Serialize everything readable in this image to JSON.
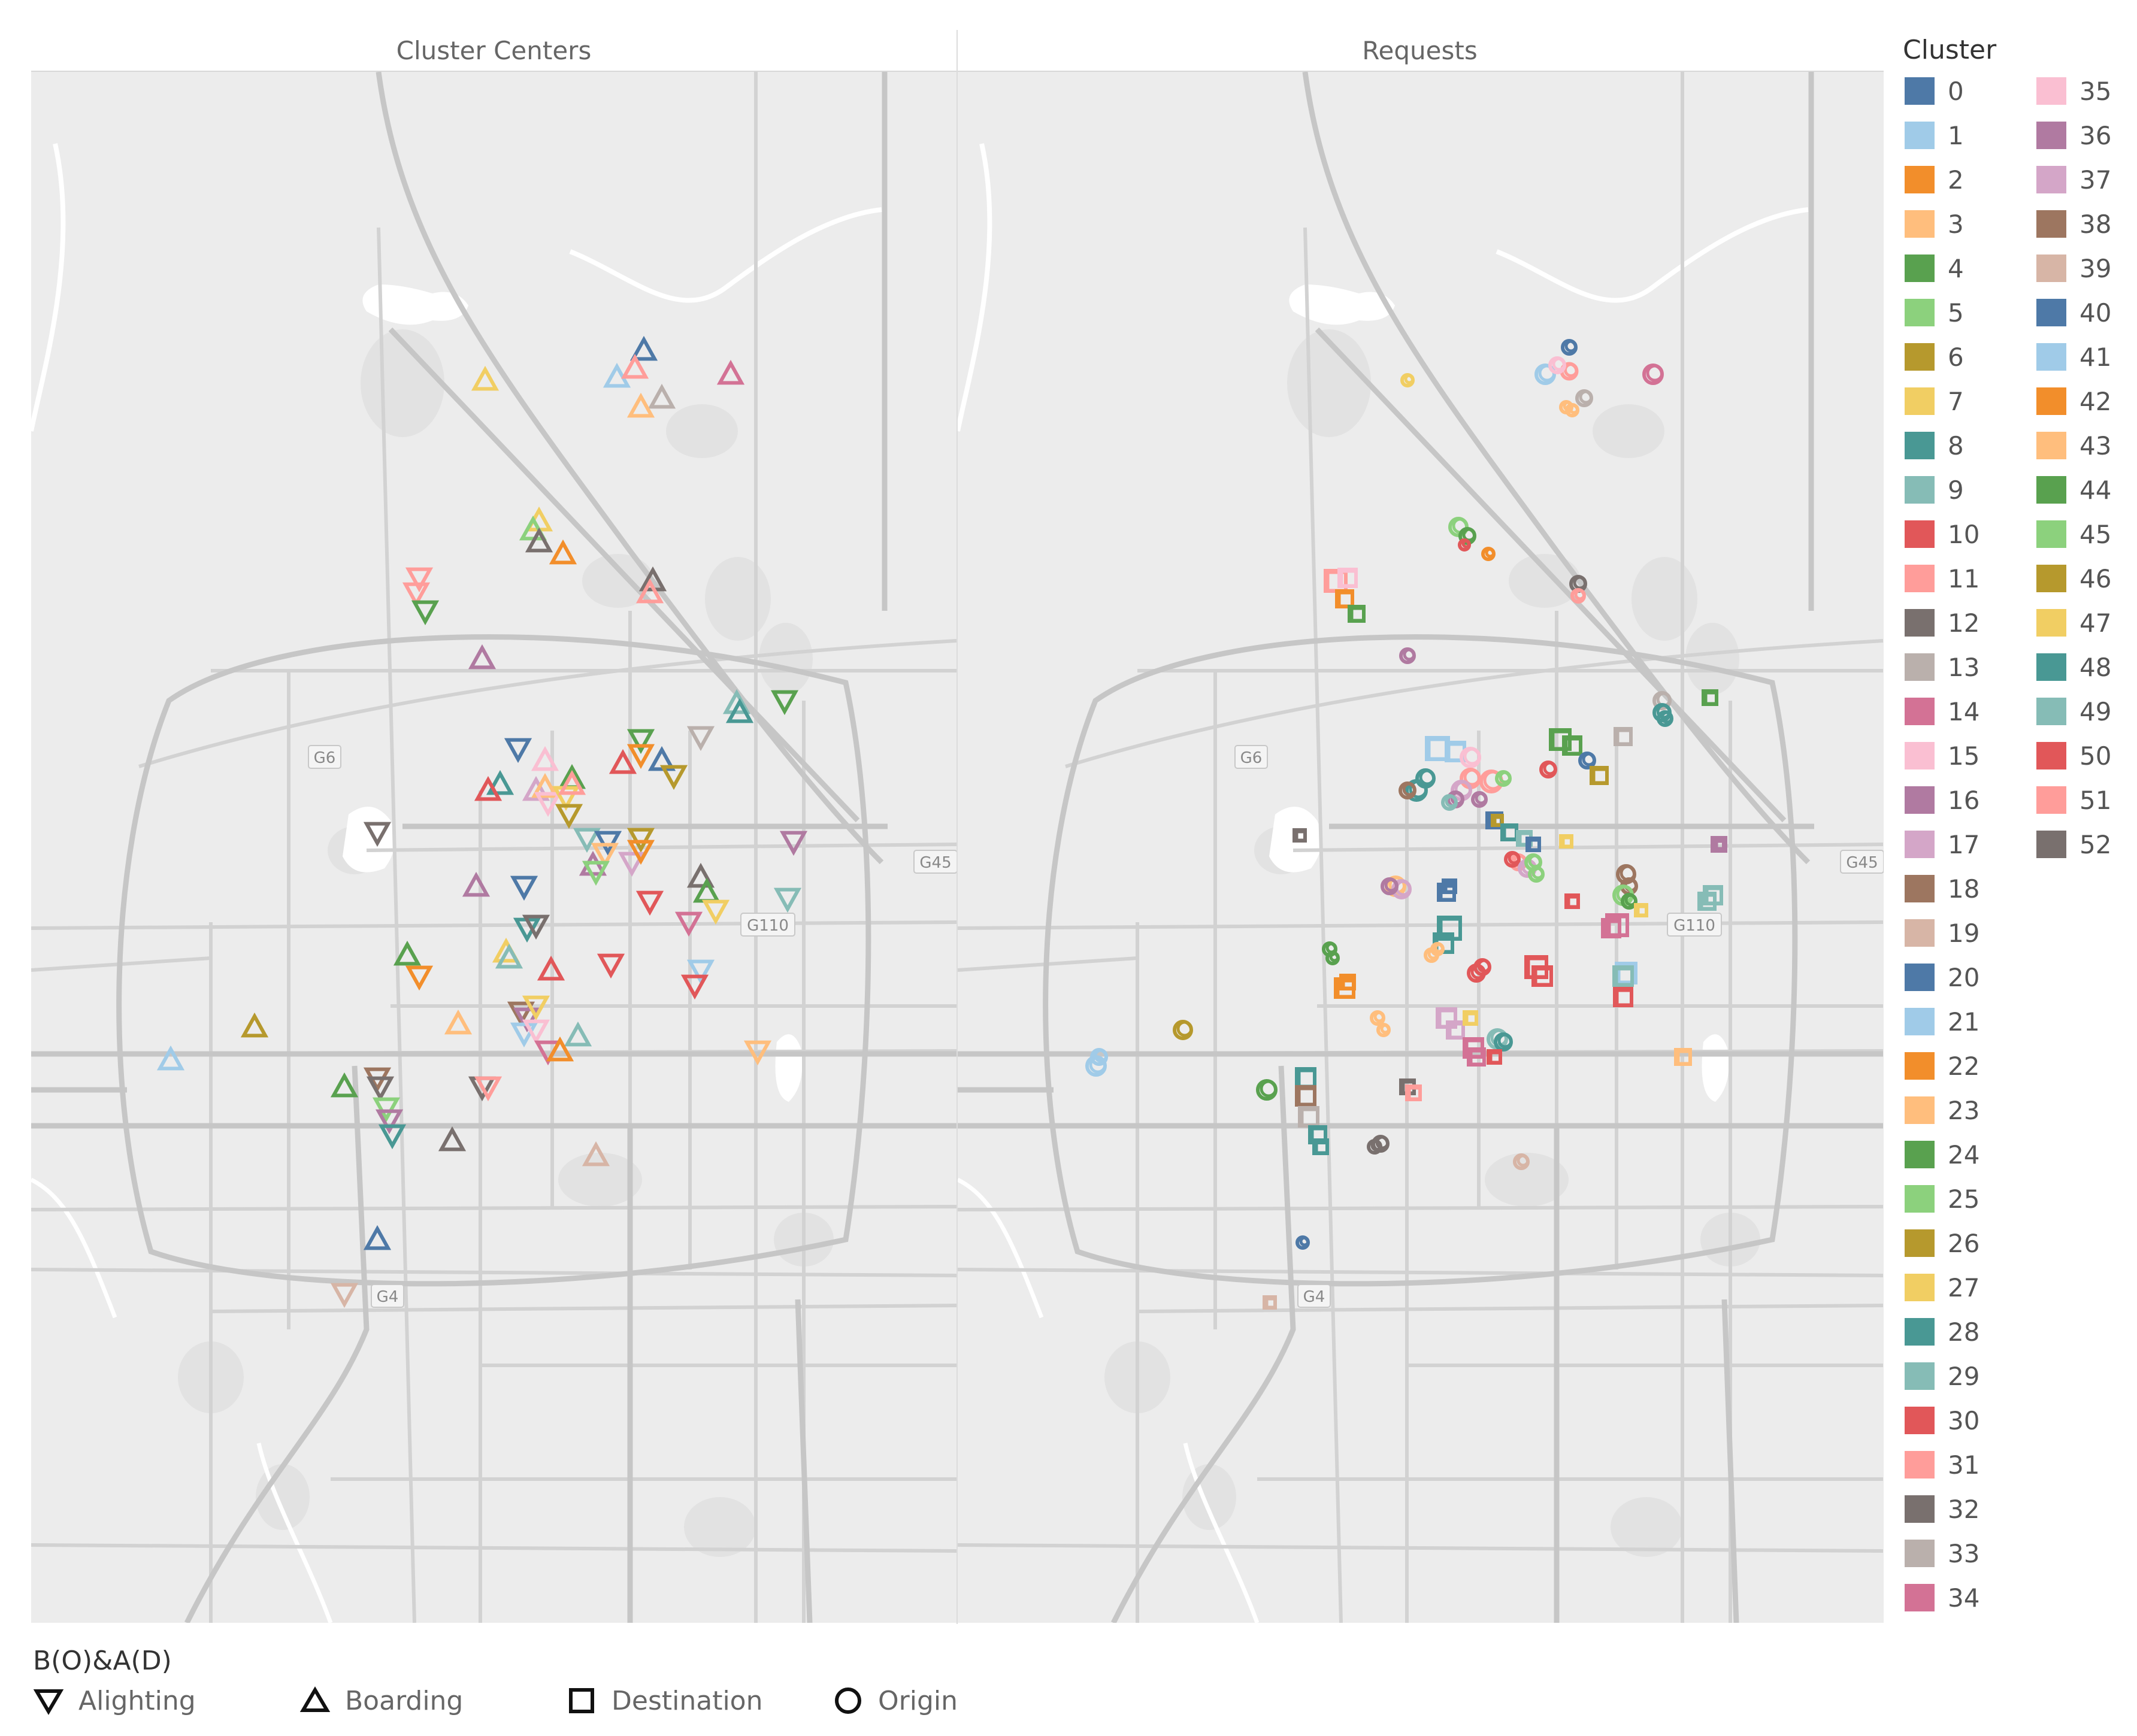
{
  "panels": {
    "left_title": "Cluster Centers",
    "right_title": "Requests"
  },
  "map": {
    "labels": [
      "G6",
      "G45",
      "G110",
      "G4"
    ]
  },
  "cluster_legend": {
    "title": "Cluster",
    "items": [
      {
        "label": "0",
        "color": "#4e79a7"
      },
      {
        "label": "1",
        "color": "#a0cbe8"
      },
      {
        "label": "2",
        "color": "#f28e2b"
      },
      {
        "label": "3",
        "color": "#ffbe7d"
      },
      {
        "label": "4",
        "color": "#59a14f"
      },
      {
        "label": "5",
        "color": "#8cd17d"
      },
      {
        "label": "6",
        "color": "#b6992d"
      },
      {
        "label": "7",
        "color": "#f1ce63"
      },
      {
        "label": "8",
        "color": "#499894"
      },
      {
        "label": "9",
        "color": "#86bcb6"
      },
      {
        "label": "10",
        "color": "#e15759"
      },
      {
        "label": "11",
        "color": "#ff9d9a"
      },
      {
        "label": "12",
        "color": "#79706e"
      },
      {
        "label": "13",
        "color": "#bab0ac"
      },
      {
        "label": "14",
        "color": "#d37295"
      },
      {
        "label": "15",
        "color": "#fabfd2"
      },
      {
        "label": "16",
        "color": "#b07aa1"
      },
      {
        "label": "17",
        "color": "#d4a6c8"
      },
      {
        "label": "18",
        "color": "#9d7660"
      },
      {
        "label": "19",
        "color": "#d7b5a6"
      },
      {
        "label": "20",
        "color": "#4e79a7"
      },
      {
        "label": "21",
        "color": "#a0cbe8"
      },
      {
        "label": "22",
        "color": "#f28e2b"
      },
      {
        "label": "23",
        "color": "#ffbe7d"
      },
      {
        "label": "24",
        "color": "#59a14f"
      },
      {
        "label": "25",
        "color": "#8cd17d"
      },
      {
        "label": "26",
        "color": "#b6992d"
      },
      {
        "label": "27",
        "color": "#f1ce63"
      },
      {
        "label": "28",
        "color": "#499894"
      },
      {
        "label": "29",
        "color": "#86bcb6"
      },
      {
        "label": "30",
        "color": "#e15759"
      },
      {
        "label": "31",
        "color": "#ff9d9a"
      },
      {
        "label": "32",
        "color": "#79706e"
      },
      {
        "label": "33",
        "color": "#bab0ac"
      },
      {
        "label": "34",
        "color": "#d37295"
      },
      {
        "label": "35",
        "color": "#fabfd2"
      },
      {
        "label": "36",
        "color": "#b07aa1"
      },
      {
        "label": "37",
        "color": "#d4a6c8"
      },
      {
        "label": "38",
        "color": "#9d7660"
      },
      {
        "label": "39",
        "color": "#d7b5a6"
      },
      {
        "label": "40",
        "color": "#4e79a7"
      },
      {
        "label": "41",
        "color": "#a0cbe8"
      },
      {
        "label": "42",
        "color": "#f28e2b"
      },
      {
        "label": "43",
        "color": "#ffbe7d"
      },
      {
        "label": "44",
        "color": "#59a14f"
      },
      {
        "label": "45",
        "color": "#8cd17d"
      },
      {
        "label": "46",
        "color": "#b6992d"
      },
      {
        "label": "47",
        "color": "#f1ce63"
      },
      {
        "label": "48",
        "color": "#499894"
      },
      {
        "label": "49",
        "color": "#86bcb6"
      },
      {
        "label": "50",
        "color": "#e15759"
      },
      {
        "label": "51",
        "color": "#ff9d9a"
      },
      {
        "label": "52",
        "color": "#79706e"
      }
    ]
  },
  "shape_legend": {
    "title": "B(O)&A(D)",
    "items": [
      {
        "label": "Alighting",
        "shape": "triangle-down"
      },
      {
        "label": "Boarding",
        "shape": "triangle-up"
      },
      {
        "label": "Destination",
        "shape": "square"
      },
      {
        "label": "Origin",
        "shape": "circle"
      }
    ]
  },
  "center_marks": [
    [
      0,
      "up",
      1075,
      585
    ],
    [
      1,
      "up",
      1030,
      630
    ],
    [
      11,
      "up",
      1060,
      615
    ],
    [
      13,
      "up",
      1105,
      665
    ],
    [
      3,
      "up",
      1070,
      680
    ],
    [
      14,
      "up",
      1220,
      625
    ],
    [
      7,
      "up",
      810,
      635
    ],
    [
      7,
      "up",
      900,
      870
    ],
    [
      5,
      "up",
      890,
      885
    ],
    [
      12,
      "up",
      900,
      905
    ],
    [
      2,
      "up",
      940,
      925
    ],
    [
      11,
      "down",
      700,
      965
    ],
    [
      31,
      "down",
      695,
      990
    ],
    [
      4,
      "down",
      710,
      1020
    ],
    [
      12,
      "up",
      1090,
      970
    ],
    [
      31,
      "up",
      1085,
      990
    ],
    [
      16,
      "up",
      805,
      1100
    ],
    [
      9,
      "up",
      1230,
      1175
    ],
    [
      8,
      "up",
      1235,
      1190
    ],
    [
      4,
      "down",
      1310,
      1170
    ],
    [
      0,
      "down",
      865,
      1250
    ],
    [
      15,
      "up",
      910,
      1270
    ],
    [
      4,
      "down",
      1070,
      1235
    ],
    [
      2,
      "down",
      1070,
      1260
    ],
    [
      0,
      "up",
      1105,
      1270
    ],
    [
      10,
      "up",
      1040,
      1275
    ],
    [
      6,
      "down",
      1125,
      1295
    ],
    [
      13,
      "down",
      1170,
      1230
    ],
    [
      8,
      "up",
      835,
      1310
    ],
    [
      10,
      "up",
      815,
      1320
    ],
    [
      37,
      "up",
      895,
      1320
    ],
    [
      3,
      "up",
      910,
      1315
    ],
    [
      15,
      "down",
      915,
      1340
    ],
    [
      4,
      "up",
      955,
      1300
    ],
    [
      7,
      "down",
      945,
      1330
    ],
    [
      11,
      "up",
      955,
      1310
    ],
    [
      6,
      "down",
      950,
      1360
    ],
    [
      12,
      "down",
      630,
      1390
    ],
    [
      9,
      "down",
      980,
      1400
    ],
    [
      0,
      "down",
      1015,
      1405
    ],
    [
      6,
      "down",
      1070,
      1400
    ],
    [
      3,
      "down",
      1010,
      1425
    ],
    [
      36,
      "up",
      990,
      1445
    ],
    [
      17,
      "down",
      1055,
      1440
    ],
    [
      5,
      "down",
      995,
      1455
    ],
    [
      22,
      "down",
      1070,
      1420
    ],
    [
      36,
      "down",
      1325,
      1405
    ],
    [
      16,
      "up",
      795,
      1480
    ],
    [
      0,
      "down",
      875,
      1480
    ],
    [
      12,
      "up",
      1170,
      1465
    ],
    [
      4,
      "up",
      1180,
      1490
    ],
    [
      7,
      "down",
      1195,
      1520
    ],
    [
      10,
      "down",
      1085,
      1505
    ],
    [
      14,
      "down",
      1150,
      1540
    ],
    [
      8,
      "down",
      880,
      1550
    ],
    [
      12,
      "down",
      895,
      1545
    ],
    [
      9,
      "down",
      1315,
      1500
    ],
    [
      4,
      "up",
      680,
      1595
    ],
    [
      22,
      "down",
      700,
      1630
    ],
    [
      7,
      "up",
      845,
      1590
    ],
    [
      9,
      "up",
      850,
      1600
    ],
    [
      10,
      "up",
      920,
      1620
    ],
    [
      10,
      "down",
      1020,
      1610
    ],
    [
      21,
      "down",
      1170,
      1620
    ],
    [
      10,
      "down",
      1160,
      1645
    ],
    [
      3,
      "up",
      765,
      1710
    ],
    [
      38,
      "down",
      870,
      1690
    ],
    [
      16,
      "down",
      880,
      1700
    ],
    [
      7,
      "down",
      895,
      1680
    ],
    [
      21,
      "down",
      875,
      1725
    ],
    [
      15,
      "down",
      895,
      1720
    ],
    [
      29,
      "up",
      965,
      1730
    ],
    [
      14,
      "down",
      915,
      1755
    ],
    [
      2,
      "up",
      935,
      1755
    ],
    [
      6,
      "up",
      425,
      1715
    ],
    [
      41,
      "up",
      285,
      1770
    ],
    [
      3,
      "down",
      1265,
      1755
    ],
    [
      4,
      "up",
      575,
      1815
    ],
    [
      38,
      "down",
      630,
      1800
    ],
    [
      12,
      "down",
      635,
      1815
    ],
    [
      5,
      "down",
      645,
      1850
    ],
    [
      16,
      "down",
      650,
      1870
    ],
    [
      8,
      "down",
      655,
      1895
    ],
    [
      12,
      "down",
      805,
      1815
    ],
    [
      11,
      "down",
      815,
      1815
    ],
    [
      12,
      "up",
      755,
      1905
    ],
    [
      19,
      "up",
      995,
      1930
    ],
    [
      0,
      "up",
      630,
      2070
    ],
    [
      19,
      "down",
      575,
      2160
    ]
  ],
  "request_marks": [
    [
      0,
      "circle",
      2620,
      580,
      22
    ],
    [
      21,
      "circle",
      2580,
      625,
      30
    ],
    [
      11,
      "circle",
      2620,
      620,
      25
    ],
    [
      35,
      "circle",
      2600,
      610,
      24
    ],
    [
      23,
      "circle",
      2615,
      680,
      18
    ],
    [
      3,
      "circle",
      2625,
      685,
      18
    ],
    [
      13,
      "circle",
      2645,
      665,
      24
    ],
    [
      14,
      "circle",
      2760,
      625,
      30
    ],
    [
      7,
      "circle",
      2350,
      635,
      18
    ],
    [
      5,
      "circle",
      2435,
      880,
      28
    ],
    [
      4,
      "circle",
      2450,
      895,
      24
    ],
    [
      22,
      "circle",
      2485,
      925,
      18
    ],
    [
      10,
      "circle",
      2445,
      910,
      16
    ],
    [
      11,
      "square",
      2230,
      970,
      34
    ],
    [
      35,
      "square",
      2250,
      965,
      28
    ],
    [
      22,
      "square",
      2245,
      1000,
      26
    ],
    [
      4,
      "square",
      2265,
      1025,
      24
    ],
    [
      12,
      "circle",
      2635,
      975,
      24
    ],
    [
      11,
      "circle",
      2635,
      995,
      20
    ],
    [
      16,
      "circle",
      2350,
      1095,
      22
    ],
    [
      13,
      "circle",
      2775,
      1170,
      26
    ],
    [
      28,
      "circle",
      2775,
      1190,
      26
    ],
    [
      8,
      "circle",
      2780,
      1200,
      22
    ],
    [
      44,
      "square",
      2855,
      1165,
      22
    ],
    [
      24,
      "square",
      2605,
      1235,
      32
    ],
    [
      24,
      "square",
      2625,
      1245,
      28
    ],
    [
      13,
      "square",
      2710,
      1230,
      26
    ],
    [
      0,
      "circle",
      2650,
      1270,
      24
    ],
    [
      30,
      "circle",
      2585,
      1285,
      24
    ],
    [
      6,
      "square",
      2670,
      1295,
      26
    ],
    [
      41,
      "square",
      2400,
      1250,
      36
    ],
    [
      21,
      "square",
      2430,
      1255,
      30
    ],
    [
      15,
      "circle",
      2455,
      1265,
      30
    ],
    [
      31,
      "circle",
      2490,
      1305,
      34
    ],
    [
      11,
      "circle",
      2455,
      1300,
      30
    ],
    [
      37,
      "circle",
      2440,
      1320,
      30
    ],
    [
      16,
      "circle",
      2430,
      1335,
      24
    ],
    [
      28,
      "circle",
      2365,
      1320,
      32
    ],
    [
      8,
      "circle",
      2380,
      1300,
      28
    ],
    [
      18,
      "circle",
      2350,
      1320,
      24
    ],
    [
      9,
      "circle",
      2420,
      1340,
      22
    ],
    [
      36,
      "circle",
      2470,
      1335,
      22
    ],
    [
      5,
      "circle",
      2510,
      1300,
      22
    ],
    [
      0,
      "square",
      2495,
      1370,
      24
    ],
    [
      6,
      "square",
      2500,
      1370,
      16
    ],
    [
      8,
      "square",
      2520,
      1390,
      24
    ],
    [
      29,
      "square",
      2545,
      1400,
      22
    ],
    [
      0,
      "square",
      2560,
      1410,
      20
    ],
    [
      7,
      "square",
      2615,
      1405,
      18
    ],
    [
      12,
      "square",
      2170,
      1395,
      18
    ],
    [
      36,
      "square",
      2870,
      1410,
      22
    ],
    [
      16,
      "square",
      2870,
      1410,
      16
    ],
    [
      31,
      "circle",
      2535,
      1440,
      24
    ],
    [
      10,
      "circle",
      2525,
      1435,
      22
    ],
    [
      37,
      "circle",
      2550,
      1450,
      26
    ],
    [
      5,
      "circle",
      2560,
      1440,
      24
    ],
    [
      25,
      "circle",
      2565,
      1460,
      22
    ],
    [
      3,
      "circle",
      2330,
      1480,
      30
    ],
    [
      37,
      "circle",
      2340,
      1485,
      28
    ],
    [
      16,
      "circle",
      2320,
      1480,
      24
    ],
    [
      0,
      "square",
      2415,
      1490,
      26
    ],
    [
      20,
      "square",
      2420,
      1480,
      20
    ],
    [
      28,
      "square",
      2420,
      1550,
      36
    ],
    [
      8,
      "square",
      2410,
      1575,
      30
    ],
    [
      10,
      "square",
      2625,
      1505,
      20
    ],
    [
      18,
      "circle",
      2715,
      1460,
      28
    ],
    [
      38,
      "circle",
      2720,
      1480,
      24
    ],
    [
      5,
      "circle",
      2710,
      1495,
      30
    ],
    [
      4,
      "circle",
      2720,
      1505,
      22
    ],
    [
      7,
      "square",
      2740,
      1520,
      18
    ],
    [
      29,
      "square",
      2860,
      1495,
      28
    ],
    [
      9,
      "square",
      2850,
      1505,
      26
    ],
    [
      34,
      "square",
      2700,
      1545,
      34
    ],
    [
      14,
      "square",
      2690,
      1550,
      28
    ],
    [
      4,
      "circle",
      2220,
      1585,
      20
    ],
    [
      4,
      "circle",
      2225,
      1600,
      18
    ],
    [
      3,
      "circle",
      2390,
      1595,
      20
    ],
    [
      3,
      "circle",
      2400,
      1585,
      18
    ],
    [
      10,
      "circle",
      2465,
      1625,
      26
    ],
    [
      30,
      "circle",
      2475,
      1615,
      24
    ],
    [
      10,
      "square",
      2565,
      1615,
      34
    ],
    [
      30,
      "square",
      2575,
      1630,
      30
    ],
    [
      21,
      "square",
      2715,
      1625,
      32
    ],
    [
      29,
      "square",
      2710,
      1630,
      30
    ],
    [
      10,
      "square",
      2710,
      1665,
      28
    ],
    [
      22,
      "square",
      2245,
      1650,
      30
    ],
    [
      2,
      "square",
      2250,
      1640,
      22
    ],
    [
      3,
      "circle",
      2300,
      1700,
      20
    ],
    [
      3,
      "circle",
      2310,
      1720,
      18
    ],
    [
      37,
      "square",
      2415,
      1700,
      30
    ],
    [
      17,
      "square",
      2430,
      1720,
      26
    ],
    [
      7,
      "square",
      2455,
      1700,
      20
    ],
    [
      9,
      "circle",
      2500,
      1735,
      30
    ],
    [
      8,
      "circle",
      2510,
      1740,
      26
    ],
    [
      34,
      "square",
      2460,
      1750,
      30
    ],
    [
      14,
      "square",
      2465,
      1765,
      26
    ],
    [
      10,
      "square",
      2495,
      1765,
      20
    ],
    [
      6,
      "circle",
      1975,
      1720,
      28
    ],
    [
      21,
      "circle",
      1830,
      1780,
      30
    ],
    [
      21,
      "circle",
      1835,
      1765,
      24
    ],
    [
      3,
      "square",
      2810,
      1765,
      24
    ],
    [
      12,
      "square",
      2350,
      1815,
      22
    ],
    [
      11,
      "square",
      2360,
      1825,
      22
    ],
    [
      4,
      "circle",
      2115,
      1820,
      30
    ],
    [
      8,
      "square",
      2180,
      1800,
      30
    ],
    [
      18,
      "square",
      2180,
      1830,
      30
    ],
    [
      13,
      "square",
      2185,
      1865,
      30
    ],
    [
      8,
      "square",
      2200,
      1895,
      26
    ],
    [
      28,
      "square",
      2205,
      1915,
      22
    ],
    [
      12,
      "circle",
      2305,
      1910,
      24
    ],
    [
      32,
      "circle",
      2295,
      1915,
      20
    ],
    [
      19,
      "circle",
      2540,
      1940,
      22
    ],
    [
      0,
      "circle",
      2175,
      2075,
      18
    ],
    [
      19,
      "square",
      2120,
      2175,
      18
    ]
  ]
}
